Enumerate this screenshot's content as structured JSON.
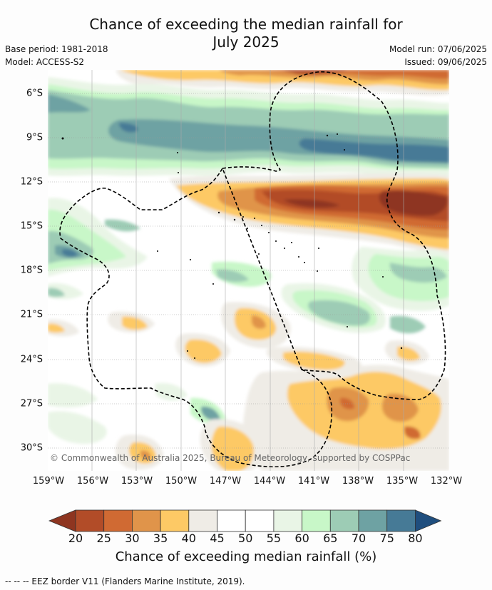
{
  "title": "Chance of exceeding the median rainfall for\nJuly 2025",
  "title_line1": "Chance of exceeding the median rainfall for",
  "title_line2": "July 2025",
  "base_period": "Base period: 1981-2018",
  "model": "Model: ACCESS-S2",
  "model_run": "Model run: 07/06/2025",
  "issued": "Issued: 09/06/2025",
  "copyright": "© Commonwealth of Australia 2025, Bureau of Meteorology, supported by COSPPac",
  "lat_labels": [
    "6°S",
    "9°S",
    "12°S",
    "15°S",
    "18°S",
    "21°S",
    "24°S",
    "27°S",
    "30°S"
  ],
  "lon_labels": [
    "159°W",
    "156°W",
    "153°W",
    "150°W",
    "147°W",
    "144°W",
    "141°W",
    "138°W",
    "135°W",
    "132°W"
  ],
  "colorbar": {
    "label": "Chance of exceeding median rainfall (%)",
    "ticks": [
      "20",
      "25",
      "30",
      "35",
      "40",
      "45",
      "50",
      "55",
      "60",
      "65",
      "70",
      "75",
      "80"
    ],
    "colors": [
      "#8e3520",
      "#b24c28",
      "#d06a33",
      "#e0944a",
      "#fdc965",
      "#efece6",
      "#ffffff",
      "#ffffff",
      "#e9f5e6",
      "#c8f7c8",
      "#9dccb5",
      "#6ea2a3",
      "#467a96",
      "#1f4e7e"
    ]
  },
  "footer": "--  --  -- EEZ border V11 (Flanders Marine Institute, 2019)."
}
